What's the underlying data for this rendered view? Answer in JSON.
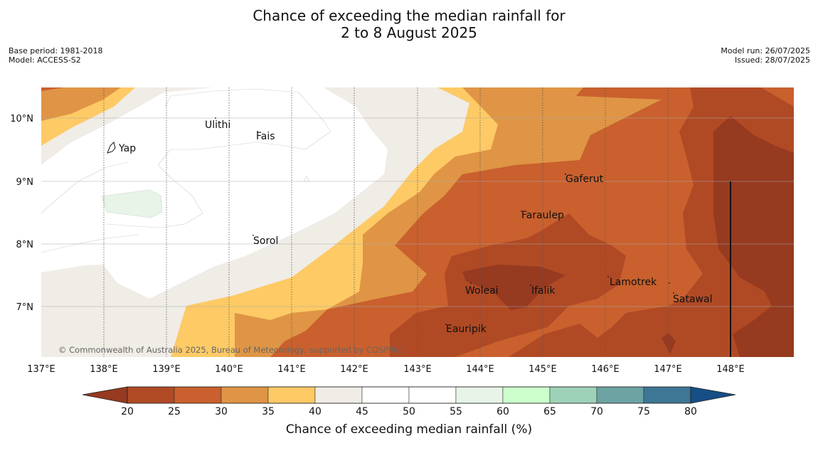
{
  "title_line1": "Chance of exceeding the median rainfall for",
  "title_line2": "2 to 8 August 2025",
  "meta_left": [
    "Base period: 1981-2018",
    "Model: ACCESS-S2"
  ],
  "meta_right": [
    "Model run: 26/07/2025",
    "Issued: 28/07/2025"
  ],
  "copyright": "© Commonwealth of Australia 2025, Bureau of Meteorology, supported by COSPPac",
  "lon_ticks": [
    "137°E",
    "138°E",
    "139°E",
    "140°E",
    "141°E",
    "142°E",
    "143°E",
    "144°E",
    "145°E",
    "146°E",
    "147°E",
    "148°E"
  ],
  "lat_ticks": [
    "10°N",
    "9°N",
    "8°N",
    "7°N"
  ],
  "places": [
    {
      "name": "Ulithi"
    },
    {
      "name": "Fais"
    },
    {
      "name": "Yap"
    },
    {
      "name": "Gaferut"
    },
    {
      "name": "Faraulep"
    },
    {
      "name": "Sorol"
    },
    {
      "name": "Lamotrek"
    },
    {
      "name": "Woleai"
    },
    {
      "name": "Ifalik"
    },
    {
      "name": "Satawal"
    },
    {
      "name": "Eauripik"
    }
  ],
  "colorbar": {
    "label": "Chance of exceeding median rainfall (%)",
    "ticks": [
      "20",
      "25",
      "30",
      "35",
      "40",
      "45",
      "50",
      "55",
      "60",
      "65",
      "70",
      "75",
      "80"
    ],
    "colors": [
      "#b04a25",
      "#c9602e",
      "#df9545",
      "#fdca65",
      "#f0ece6",
      "#ffffff",
      "#ffffff",
      "#e8f4e8",
      "#ccffcc",
      "#9ed2b8",
      "#6ea3a3",
      "#3e7696"
    ],
    "under_color": "#963a20",
    "over_color": "#164e86"
  },
  "colors": {
    "c20": "#963a20",
    "c25": "#b04a25",
    "c30": "#c9602e",
    "c35": "#df9545",
    "c40": "#fdca65",
    "c45": "#f0ece6",
    "c55": "#e8f4e8"
  }
}
